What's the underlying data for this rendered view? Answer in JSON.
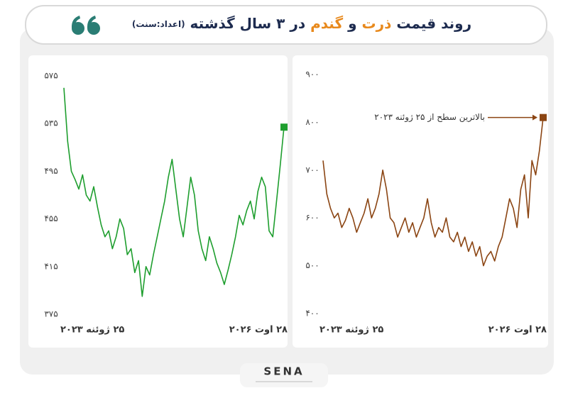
{
  "header": {
    "title_parts": [
      {
        "text": "روند قیمت",
        "color": "#1d2b4f"
      },
      {
        "text": "ذرت",
        "color": "#e8891c"
      },
      {
        "text": "و",
        "color": "#1d2b4f"
      },
      {
        "text": "گندم",
        "color": "#e8891c"
      },
      {
        "text": "در ۳ سال گذشته",
        "color": "#1d2b4f"
      }
    ],
    "note": "(اعداد:سنت)"
  },
  "chart_data": [
    {
      "type": "line",
      "color": "#1e9e2e",
      "categories": [
        "۲۵ ژوئنه ۲۰۲۳",
        null,
        null,
        null,
        null,
        null,
        null,
        null,
        null,
        null,
        null,
        null,
        null,
        null,
        null,
        null,
        null,
        null,
        null,
        null,
        null,
        null,
        null,
        null,
        null,
        null,
        null,
        null,
        null,
        null,
        null,
        null,
        null,
        null,
        null,
        null,
        null,
        null,
        null,
        null,
        null,
        null,
        null,
        null,
        null,
        null,
        null,
        null,
        null,
        null,
        null,
        null,
        null,
        null,
        null,
        null,
        null,
        null,
        null,
        "۲۸ اوت ۲۰۲۶"
      ],
      "values": [
        565,
        520,
        495,
        488,
        480,
        492,
        475,
        470,
        482,
        465,
        450,
        440,
        445,
        430,
        440,
        455,
        447,
        425,
        430,
        410,
        420,
        390,
        415,
        408,
        425,
        440,
        455,
        470,
        490,
        505,
        480,
        455,
        440,
        465,
        490,
        475,
        445,
        430,
        420,
        440,
        430,
        418,
        410,
        400,
        412,
        425,
        440,
        458,
        450,
        462,
        470,
        455,
        478,
        490,
        482,
        445,
        440,
        470,
        500,
        532
      ],
      "ylim": [
        375,
        575
      ],
      "yticks": [
        {
          "value": 375,
          "label": "۳۷۵"
        },
        {
          "value": 415,
          "label": "۴۱۵"
        },
        {
          "value": 455,
          "label": "۴۵۵"
        },
        {
          "value": 495,
          "label": "۴۹۵"
        },
        {
          "value": 535,
          "label": "۵۳۵"
        },
        {
          "value": 575,
          "label": "۵۷۵"
        }
      ]
    },
    {
      "type": "line",
      "color": "#8b4513",
      "categories": [
        "۲۵ ژوئنه ۲۰۲۳",
        null,
        null,
        null,
        null,
        null,
        null,
        null,
        null,
        null,
        null,
        null,
        null,
        null,
        null,
        null,
        null,
        null,
        null,
        null,
        null,
        null,
        null,
        null,
        null,
        null,
        null,
        null,
        null,
        null,
        null,
        null,
        null,
        null,
        null,
        null,
        null,
        null,
        null,
        null,
        null,
        null,
        null,
        null,
        null,
        null,
        null,
        null,
        null,
        null,
        null,
        null,
        null,
        null,
        null,
        null,
        null,
        null,
        null,
        "۲۸ اوت ۲۰۲۶"
      ],
      "values": [
        720,
        650,
        620,
        600,
        610,
        580,
        595,
        620,
        600,
        570,
        590,
        610,
        640,
        600,
        620,
        650,
        700,
        660,
        600,
        590,
        560,
        580,
        600,
        570,
        590,
        560,
        580,
        600,
        640,
        590,
        560,
        580,
        570,
        600,
        560,
        550,
        570,
        540,
        560,
        530,
        550,
        520,
        540,
        500,
        520,
        530,
        510,
        540,
        560,
        600,
        640,
        620,
        580,
        660,
        690,
        600,
        720,
        690,
        740,
        810
      ],
      "ylim": [
        400,
        900
      ],
      "yticks": [
        {
          "value": 400,
          "label": "۴۰۰"
        },
        {
          "value": 500,
          "label": "۵۰۰"
        },
        {
          "value": 600,
          "label": "۶۰۰"
        },
        {
          "value": 700,
          "label": "۷۰۰"
        },
        {
          "value": 800,
          "label": "۸۰۰"
        },
        {
          "value": 900,
          "label": "۹۰۰"
        }
      ],
      "annotation": "بالاترین سطح از ۲۵ ژوئنه ۲۰۲۳"
    }
  ],
  "footer": {
    "logo": "SENA"
  }
}
